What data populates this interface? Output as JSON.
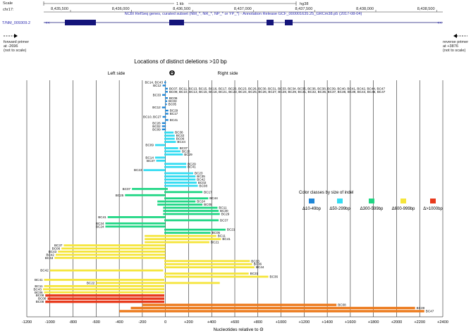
{
  "browser": {
    "scale_label": "Scale",
    "scale_text": "1 kb",
    "assembly": "hg38",
    "chrom_label": "chr17:",
    "ruler_ticks": [
      "8,435,500",
      "8,436,000",
      "8,436,500",
      "8,437,000",
      "8,437,500",
      "8,438,000",
      "8,438,500"
    ],
    "track_title": "NCBI RefSeq genes, curated subset (NM_*, NR_*, NP_* or YP_*) - Annotation Release GCF_000001635.25_GRCm38.p5 (2017-08-04)",
    "gene_label": "T/NM_009309.2",
    "forward_primer": [
      "forward primer",
      "at -2696",
      "(not to scale)"
    ],
    "reverse_primer": [
      "reverse primer",
      "at +3876",
      "(not to scale)"
    ]
  },
  "chart_data": {
    "type": "bar",
    "title": "Locations of distinct deletions >10 bp",
    "left_side_label": "Left side",
    "right_side_label": "Right side",
    "theta_symbol": "Θ",
    "xlabel": "Nucleotides relative to Θ",
    "xlim": [
      -1200,
      2400
    ],
    "xticks": [
      "-1200",
      "-1000",
      "-800",
      "-600",
      "-400",
      "-200",
      "0",
      "+200",
      "+400",
      "+600",
      "+800",
      "+1000",
      "+1200",
      "+1400",
      "+1600",
      "+1800",
      "+2000",
      "+2200",
      "+2400"
    ],
    "legend": {
      "title": "Color classes by size of indel",
      "items": [
        {
          "label": "Δ10-49bp",
          "color": "#1f86d6"
        },
        {
          "label": "Δ50-299bp",
          "color": "#33dcf2"
        },
        {
          "label": "Δ300-599bp",
          "color": "#1fd684"
        },
        {
          "label": "Δ600-999bp",
          "color": "#f5e53a"
        },
        {
          "label": "Δ>1000bp",
          "color": "#e83a1c"
        }
      ]
    },
    "color_for_large_right": "#ec7a1c",
    "series": [
      {
        "start": -10,
        "end": 5,
        "cls": 0,
        "left": "BC14, BC43"
      },
      {
        "start": -25,
        "end": 3,
        "cls": 0,
        "left": "BC12"
      },
      {
        "start": -3,
        "end": 20,
        "cls": 0,
        "right": "BC07, BC11, BC13, BC15, BC16, BC17, BC20, BC23, BC26, BC30, BC31, BC33, BC34, BC35, BC36, BC38, BC39, BC40, BC41, BC42, BC44, BC47"
      },
      {
        "start": -3,
        "end": 20,
        "cls": 0,
        "right": "BC09, BC10, BC13, BC15, BC16, BC21, BC23, BC24, BC25, BC26, BC27, BC28, BC29, BC31, BC32, BC36, BC37, BC38, BC39, BC44, BC46, BC47"
      },
      {
        "start": -28,
        "end": 3,
        "cls": 0,
        "left": "BC33"
      },
      {
        "start": -3,
        "end": 20,
        "cls": 0,
        "right": "BC06"
      },
      {
        "start": -3,
        "end": 15,
        "cls": 0,
        "right": "BC03"
      },
      {
        "start": -3,
        "end": 12,
        "cls": 0,
        "right": "BC05"
      },
      {
        "start": -30,
        "end": 3,
        "cls": 0,
        "left": "BC12"
      },
      {
        "start": -3,
        "end": 25,
        "cls": 0,
        "right": "BC29"
      },
      {
        "start": -3,
        "end": 25,
        "cls": 0,
        "right": "BC17"
      },
      {
        "start": -25,
        "end": 5,
        "cls": 0,
        "left": "BC10, BC27"
      },
      {
        "start": -3,
        "end": 25,
        "cls": 0,
        "right": "BC41"
      },
      {
        "start": -30,
        "end": 3,
        "cls": 0,
        "left": "BC26"
      },
      {
        "start": -30,
        "end": 3,
        "cls": 0,
        "left": "BC02"
      },
      {
        "start": -30,
        "end": 3,
        "cls": 0,
        "left": "BC09"
      },
      {
        "start": -10,
        "end": 70,
        "cls": 1,
        "right": "BC36"
      },
      {
        "start": -10,
        "end": 80,
        "cls": 1,
        "right": "BC32"
      },
      {
        "start": -10,
        "end": 80,
        "cls": 1,
        "right": "BC06"
      },
      {
        "start": -10,
        "end": 90,
        "cls": 1,
        "right": "BC44"
      },
      {
        "start": -90,
        "end": 0,
        "cls": 1,
        "left": "BC09"
      },
      {
        "start": -10,
        "end": 110,
        "cls": 1,
        "right": "BC07"
      },
      {
        "start": -10,
        "end": 130,
        "cls": 1,
        "right": "BC26"
      },
      {
        "start": -10,
        "end": 150,
        "cls": 1,
        "right": "BC29"
      },
      {
        "start": -90,
        "end": 0,
        "cls": 1,
        "left": "BC14"
      },
      {
        "start": -80,
        "end": 0,
        "cls": 1,
        "left": "BC37"
      },
      {
        "start": -10,
        "end": 180,
        "cls": 1,
        "right": "BC29"
      },
      {
        "start": -10,
        "end": 180,
        "cls": 1,
        "right": "BC41"
      },
      {
        "start": -190,
        "end": 0,
        "cls": 1,
        "left": "BC22"
      },
      {
        "start": -10,
        "end": 240,
        "cls": 1,
        "right": "BC23"
      },
      {
        "start": -10,
        "end": 260,
        "cls": 1,
        "right": "BC35"
      },
      {
        "start": -10,
        "end": 260,
        "cls": 1,
        "right": "BC42"
      },
      {
        "start": -10,
        "end": 270,
        "cls": 1,
        "right": "BC02"
      },
      {
        "start": -10,
        "end": 280,
        "cls": 1,
        "right": "BC08"
      },
      {
        "start": -290,
        "end": 20,
        "cls": 2,
        "left": "BC07"
      },
      {
        "start": -10,
        "end": 320,
        "cls": 2,
        "right": "BC17"
      },
      {
        "start": -350,
        "end": 0,
        "cls": 2,
        "left": "BC25"
      },
      {
        "start": -10,
        "end": 370,
        "cls": 2,
        "right": "BC44"
      },
      {
        "start": -70,
        "end": 260,
        "cls": 2,
        "right": "BC24"
      },
      {
        "start": -70,
        "end": 320,
        "cls": 2,
        "right": "BC05"
      },
      {
        "start": -20,
        "end": 450,
        "cls": 2,
        "right": "BC11"
      },
      {
        "start": -20,
        "end": 460,
        "cls": 2,
        "right": "BC30"
      },
      {
        "start": -20,
        "end": 470,
        "cls": 2,
        "right": "BC29"
      },
      {
        "start": -500,
        "end": 0,
        "cls": 2,
        "left": "BC41"
      },
      {
        "start": -10,
        "end": 460,
        "cls": 2,
        "right": "BC37"
      },
      {
        "start": -520,
        "end": 0,
        "cls": 2,
        "left": "BC24"
      },
      {
        "start": -520,
        "end": 0,
        "cls": 2,
        "left": "BC24"
      },
      {
        "start": -10,
        "end": 520,
        "cls": 2,
        "right": "BC21"
      },
      {
        "start": -10,
        "end": 390,
        "cls": 2,
        "right": "BC05"
      },
      {
        "start": -180,
        "end": 440,
        "cls": 3,
        "right": "BC11"
      },
      {
        "start": -180,
        "end": 480,
        "cls": 3,
        "right": "BC41"
      },
      {
        "start": -180,
        "end": 380,
        "cls": 3,
        "right": "BC21"
      },
      {
        "start": -880,
        "end": 0,
        "cls": 3,
        "left": "BC37"
      },
      {
        "start": -900,
        "end": 0,
        "cls": 3,
        "left": "BC06"
      },
      {
        "start": -930,
        "end": 0,
        "cls": 3,
        "left": "BC43"
      },
      {
        "start": -950,
        "end": 0,
        "cls": 3,
        "left": "BC42"
      },
      {
        "start": -960,
        "end": 0,
        "cls": 3,
        "left": "BC43"
      },
      {
        "start": -10,
        "end": 730,
        "cls": 3,
        "right": "BC33"
      },
      {
        "start": -10,
        "end": 750,
        "cls": 3,
        "right": "BC36"
      },
      {
        "start": -10,
        "end": 770,
        "cls": 3,
        "right": "BC44"
      },
      {
        "start": -1000,
        "end": -20,
        "cls": 3,
        "left": "BC42"
      },
      {
        "start": -10,
        "end": 720,
        "cls": 3,
        "right": "BC31"
      },
      {
        "start": -10,
        "end": 890,
        "cls": 3,
        "right": "BC36"
      },
      {
        "start": -1050,
        "end": -10,
        "cls": 3,
        "left": "BC41"
      },
      {
        "start": -600,
        "end": 470,
        "cls": 3,
        "left": "BC22"
      },
      {
        "start": -1050,
        "end": -10,
        "cls": 3,
        "left": "BC11"
      },
      {
        "start": -1060,
        "end": -10,
        "cls": 3,
        "left": "BC43"
      },
      {
        "start": -1050,
        "end": -10,
        "cls": 3,
        "left": "BC06"
      },
      {
        "start": -1040,
        "end": -10,
        "cls": 4,
        "left": "BC08"
      },
      {
        "start": -1020,
        "end": -10,
        "cls": 4,
        "left": "BC08"
      },
      {
        "start": -1040,
        "end": -10,
        "cls": 4,
        "left": "BC08"
      },
      {
        "start": -200,
        "end": 1480,
        "cls": 5,
        "right": "BC08"
      },
      {
        "start": -300,
        "end": 2160,
        "cls": 5,
        "right": "BC39"
      },
      {
        "start": -400,
        "end": 2240,
        "cls": 5,
        "right": "BC47"
      }
    ]
  }
}
